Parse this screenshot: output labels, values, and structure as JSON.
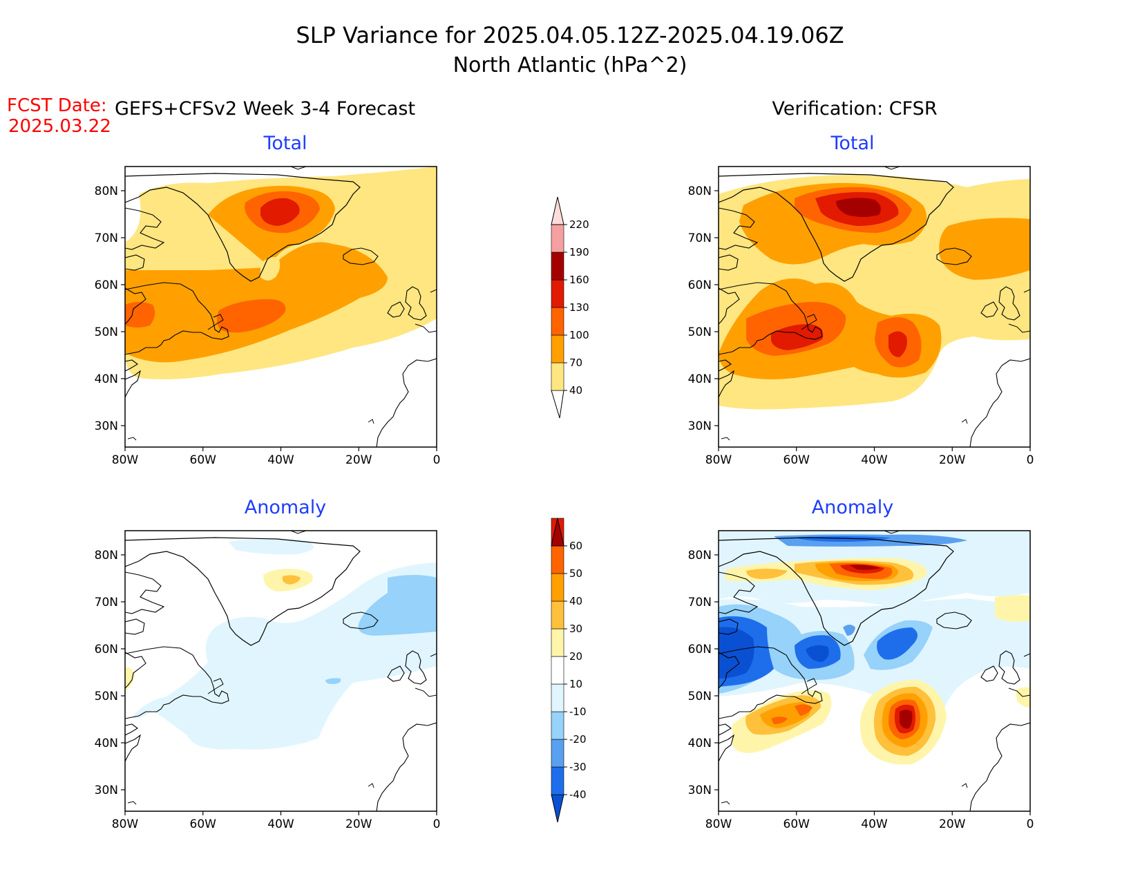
{
  "header": {
    "title": "SLP Variance for 2025.04.05.12Z-2025.04.19.06Z",
    "subtitle": "North Atlantic (hPa^2)",
    "fcst_label": "FCST Date:",
    "fcst_date": "2025.03.22"
  },
  "columns": {
    "left": "GEFS+CFSv2 Week 3-4 Forecast",
    "right": "Verification: CFSR"
  },
  "panels": {
    "total_label": "Total",
    "anomaly_label": "Anomaly"
  },
  "axes": {
    "lat_ticks": [
      "80N",
      "70N",
      "60N",
      "50N",
      "40N",
      "30N"
    ],
    "lon_ticks": [
      "80W",
      "60W",
      "40W",
      "20W",
      "0"
    ]
  },
  "colors": {
    "title_text": "#000000",
    "fcst_text": "#ff0000",
    "panel_label": "#1e3cff",
    "land_outline": "#000000"
  },
  "total_colorbar": {
    "levels": [
      "40",
      "70",
      "100",
      "130",
      "160",
      "190",
      "220"
    ],
    "colors": [
      "#ffe680",
      "#ffa000",
      "#ff6400",
      "#e11a00",
      "#a50000",
      "#f5a0a0",
      "#ffdcdc"
    ]
  },
  "anomaly_colorbar": {
    "levels": [
      "-40",
      "-30",
      "-20",
      "-10",
      "10",
      "20",
      "30",
      "40",
      "50",
      "60"
    ],
    "colors": [
      "#0a50d2",
      "#1e6eeb",
      "#5aa0f0",
      "#96d2fa",
      "#e1f5ff",
      "#ffffff",
      "#fff5aa",
      "#ffc03c",
      "#ffa000",
      "#ff6400",
      "#e11a00",
      "#a50000"
    ]
  }
}
